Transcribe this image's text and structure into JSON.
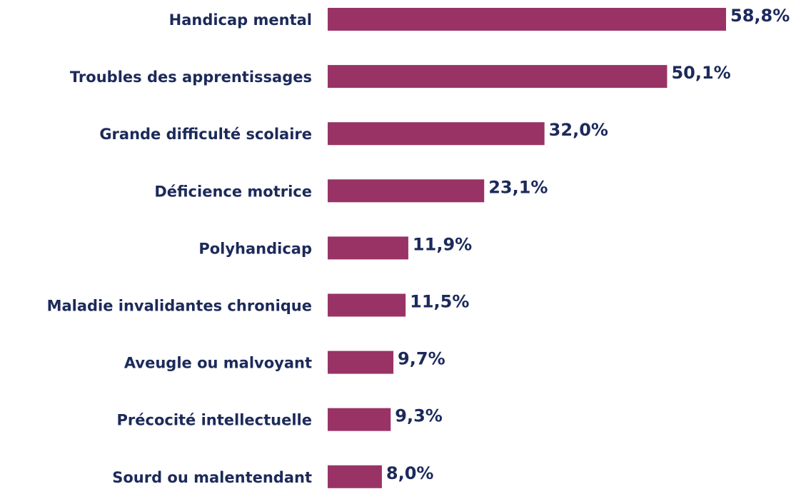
{
  "chart_data": {
    "type": "bar",
    "orientation": "horizontal",
    "categories": [
      "Handicap mental",
      "Troubles des apprentissages",
      "Grande difficulté scolaire",
      "Déficience motrice",
      "Polyhandicap",
      "Maladie invalidantes chronique",
      "Aveugle ou malvoyant",
      "Précocité intellectuelle",
      "Sourd ou malentendant"
    ],
    "values": [
      58.8,
      50.1,
      32.0,
      23.1,
      11.9,
      11.5,
      9.7,
      9.3,
      8.0
    ],
    "value_labels": [
      "58,8%",
      "50,1%",
      "32,0%",
      "23,1%",
      "11,9%",
      "11,5%",
      "9,7%",
      "9,3%",
      "8,0%"
    ],
    "color": "#993366"
  }
}
